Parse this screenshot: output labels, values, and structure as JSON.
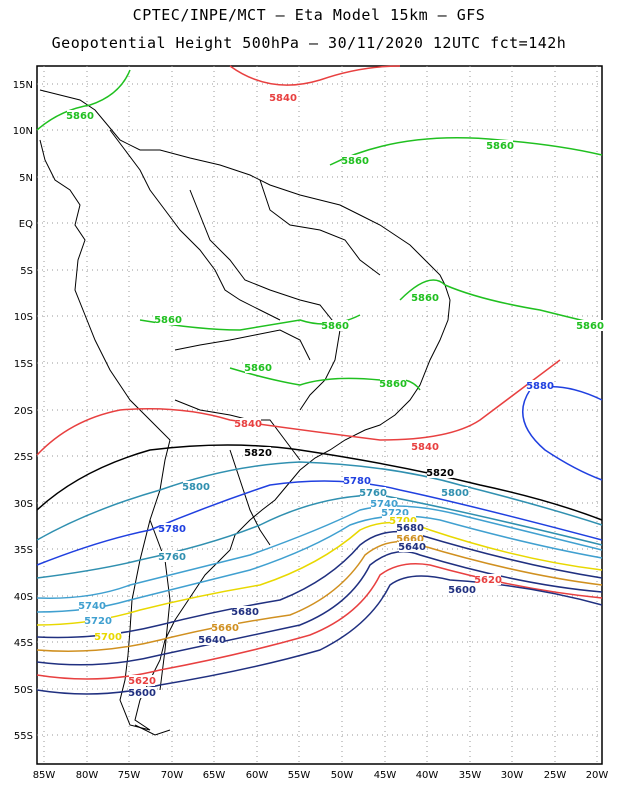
{
  "title_line1": "CPTEC/INPE/MCT –   Eta Model 15km – GFS",
  "title_line2": "Geopotential Height 500hPa – 30/11/2020 12UTC fct=142h",
  "lat_labels": [
    "15N",
    "10N",
    "5N",
    "EQ",
    "5S",
    "10S",
    "15S",
    "20S",
    "25S",
    "30S",
    "35S",
    "40S",
    "45S",
    "50S",
    "55S"
  ],
  "lon_labels": [
    "85W",
    "80W",
    "75W",
    "70W",
    "65W",
    "60W",
    "55W",
    "50W",
    "45W",
    "40W",
    "35W",
    "30W",
    "25W",
    "20W"
  ],
  "contour_labels": [
    {
      "text": "5840",
      "color": "#e84040"
    },
    {
      "text": "5860",
      "color": "#20c020"
    },
    {
      "text": "5860",
      "color": "#20c020"
    },
    {
      "text": "5860",
      "color": "#20c020"
    },
    {
      "text": "5860",
      "color": "#20c020"
    },
    {
      "text": "5860",
      "color": "#20c020"
    },
    {
      "text": "5860",
      "color": "#20c020"
    },
    {
      "text": "5860",
      "color": "#20c020"
    },
    {
      "text": "5860",
      "color": "#20c020"
    },
    {
      "text": "5860",
      "color": "#20c020"
    },
    {
      "text": "5880",
      "color": "#2040e0"
    },
    {
      "text": "5840",
      "color": "#e84040"
    },
    {
      "text": "5840",
      "color": "#e84040"
    },
    {
      "text": "5820",
      "color": "#000000"
    },
    {
      "text": "5820",
      "color": "#000000"
    },
    {
      "text": "5800",
      "color": "#3090b0"
    },
    {
      "text": "5800",
      "color": "#3090b0"
    },
    {
      "text": "5780",
      "color": "#2040e0"
    },
    {
      "text": "5780",
      "color": "#2040e0"
    },
    {
      "text": "5760",
      "color": "#3090b0"
    },
    {
      "text": "5760",
      "color": "#3090b0"
    },
    {
      "text": "5740",
      "color": "#40a0d0"
    },
    {
      "text": "5740",
      "color": "#40a0d0"
    },
    {
      "text": "5720",
      "color": "#40a0d0"
    },
    {
      "text": "5720",
      "color": "#40a0d0"
    },
    {
      "text": "5700",
      "color": "#e8d800"
    },
    {
      "text": "5700",
      "color": "#e8d800"
    },
    {
      "text": "5680",
      "color": "#203080"
    },
    {
      "text": "5680",
      "color": "#203080"
    },
    {
      "text": "5660",
      "color": "#d09020"
    },
    {
      "text": "5660",
      "color": "#d09020"
    },
    {
      "text": "5640",
      "color": "#203080"
    },
    {
      "text": "5640",
      "color": "#203080"
    },
    {
      "text": "5620",
      "color": "#e84040"
    },
    {
      "text": "5620",
      "color": "#e84040"
    },
    {
      "text": "5600",
      "color": "#203080"
    },
    {
      "text": "5600",
      "color": "#203080"
    }
  ]
}
